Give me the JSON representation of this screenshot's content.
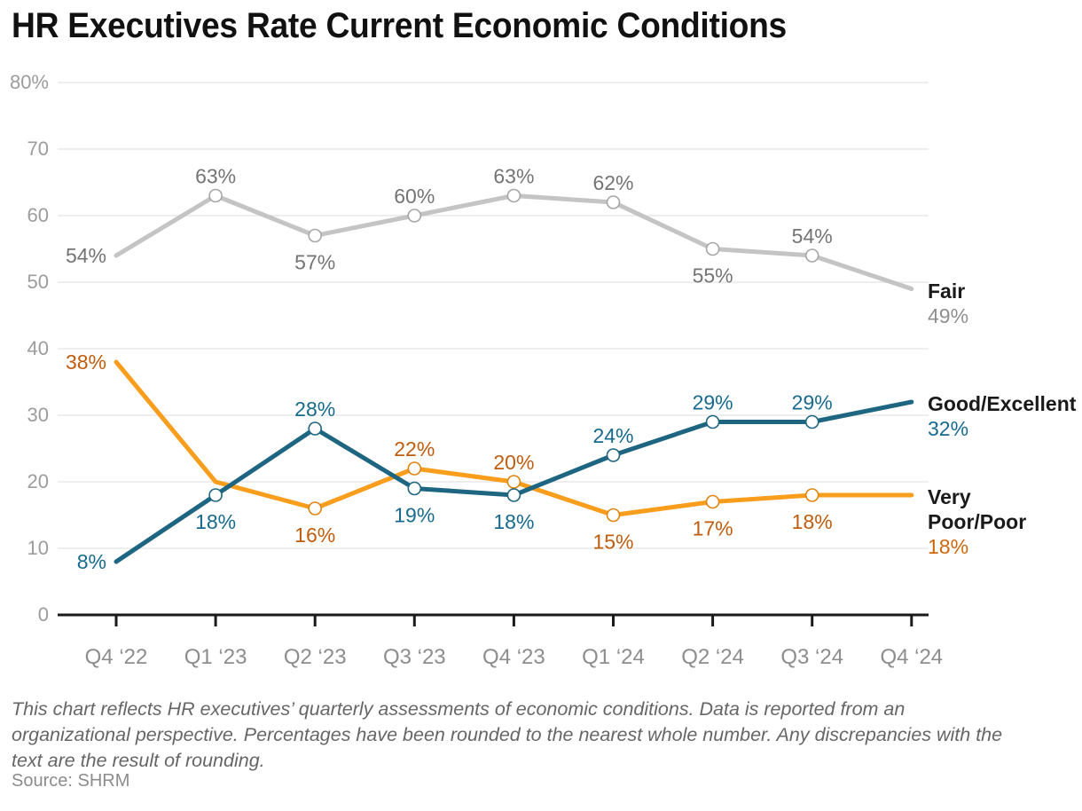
{
  "title": "HR Executives Rate Current Economic Conditions",
  "footnote": "This chart reflects HR executives’ quarterly assessments of economic conditions. Data is reported from an organizational perspective. Percentages have been rounded to the nearest whole number. Any discrepancies with the text are the result of rounding.",
  "source": "Source: SHRM",
  "chart_data": {
    "type": "line",
    "title": "HR Executives Rate Current Economic Conditions",
    "categories": [
      "Q4 ‘22",
      "Q1 ‘23",
      "Q2 ‘23",
      "Q3 ‘23",
      "Q4 ‘23",
      "Q1 ‘24",
      "Q2 ‘24",
      "Q3 ‘24",
      "Q4 ‘24"
    ],
    "ylim": [
      0,
      80
    ],
    "ytick_labels": [
      "0",
      "10",
      "20",
      "30",
      "40",
      "50",
      "60",
      "70",
      "80%"
    ],
    "grid": "horizontal",
    "legend_position": "right-end-of-line",
    "series": [
      {
        "name": "Fair",
        "values": [
          54,
          63,
          57,
          60,
          63,
          62,
          55,
          54,
          49
        ],
        "line_color": "#c4c4c4",
        "marker_color": "#a6a6a6",
        "label_color": "#747474",
        "end_label_lines": [
          "Fair"
        ],
        "end_value_label": "49%",
        "end_value_color": "#8f8f8f",
        "label_pos": [
          "left",
          "above",
          "below",
          "above",
          "above",
          "above",
          "below",
          "above",
          "end"
        ],
        "markers": [
          false,
          true,
          true,
          true,
          true,
          true,
          true,
          true,
          false
        ]
      },
      {
        "name": "Very Poor/Poor",
        "values": [
          38,
          20,
          16,
          22,
          20,
          15,
          17,
          18,
          18
        ],
        "line_color": "#f99d1c",
        "marker_color": "#e0830f",
        "label_color": "#c05c0e",
        "end_label_lines": [
          "Very",
          "Poor/Poor"
        ],
        "end_value_label": "18%",
        "end_value_color": "#cd660d",
        "label_pos": [
          "left",
          "none",
          "below",
          "above",
          "above",
          "below",
          "below",
          "below",
          "end"
        ],
        "markers": [
          false,
          false,
          true,
          true,
          true,
          true,
          true,
          true,
          false
        ]
      },
      {
        "name": "Good/Excellent",
        "values": [
          8,
          18,
          28,
          19,
          18,
          24,
          29,
          29,
          32
        ],
        "line_color": "#1d6581",
        "marker_color": "#1d6581",
        "label_color": "#176a8e",
        "end_label_lines": [
          "Good/Excellent"
        ],
        "end_value_label": "32%",
        "end_value_color": "#176a8e",
        "label_pos": [
          "left",
          "below",
          "above",
          "below",
          "below",
          "above",
          "above",
          "above",
          "end"
        ],
        "markers": [
          false,
          true,
          true,
          true,
          true,
          true,
          true,
          true,
          false
        ]
      }
    ]
  }
}
